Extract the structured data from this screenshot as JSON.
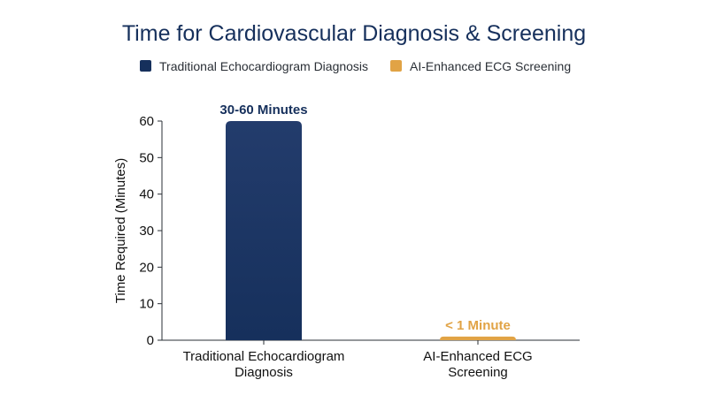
{
  "chart_data": {
    "type": "bar",
    "title": "Time for Cardiovascular Diagnosis & Screening",
    "ylabel": "Time Required (Minutes)",
    "xlabel": "",
    "ylim": [
      0,
      60
    ],
    "yticks": [
      0,
      10,
      20,
      30,
      40,
      50,
      60
    ],
    "grid": false,
    "legend_position": "top-center",
    "categories": [
      [
        "Traditional Echocardiogram",
        "Diagnosis"
      ],
      [
        "AI-Enhanced ECG",
        "Screening"
      ]
    ],
    "series": [
      {
        "name": "Traditional Echocardiogram Diagnosis",
        "color": "#16305c",
        "color_top": "#233c6c",
        "category_index": 0,
        "value": 60,
        "data_label": "30-60 Minutes",
        "label_color": "#16305c"
      },
      {
        "name": "AI-Enhanced ECG Screening",
        "color": "#e1a345",
        "color_top": "#e1a345",
        "category_index": 1,
        "value": 1,
        "data_label": "< 1 Minute",
        "label_color": "#e1a345"
      }
    ]
  }
}
